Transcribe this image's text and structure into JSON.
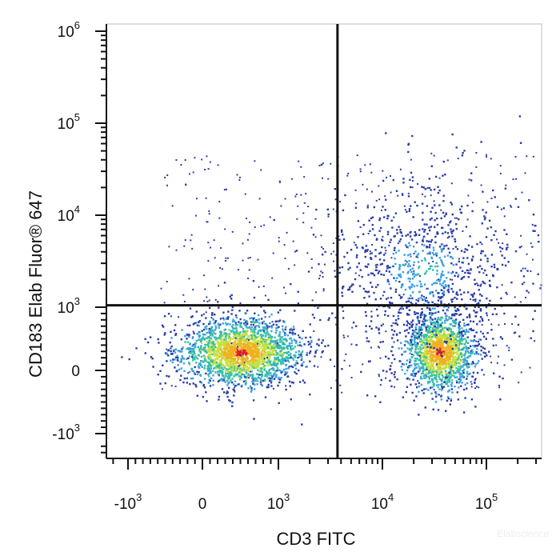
{
  "chart_data": {
    "type": "scatter",
    "title": "",
    "xlabel": "CD3 FITC",
    "ylabel": "CD183  Elab Fluor® 647",
    "x_scale": "biexponential",
    "y_scale": "biexponential",
    "x_ticks": [
      {
        "value": -1000,
        "base": "-10",
        "exp": "3"
      },
      {
        "value": 0,
        "base": "0",
        "exp": ""
      },
      {
        "value": 1000,
        "base": "10",
        "exp": "3"
      },
      {
        "value": 10000,
        "base": "10",
        "exp": "4"
      },
      {
        "value": 100000,
        "base": "10",
        "exp": "5"
      }
    ],
    "y_ticks": [
      {
        "value": 1000000,
        "base": "10",
        "exp": "6"
      },
      {
        "value": 100000,
        "base": "10",
        "exp": "5"
      },
      {
        "value": 10000,
        "base": "10",
        "exp": "4"
      },
      {
        "value": 1000,
        "base": "10",
        "exp": "3"
      },
      {
        "value": 0,
        "base": "0",
        "exp": ""
      },
      {
        "value": -1000,
        "base": "-10",
        "exp": "3"
      }
    ],
    "quadrant_gate": {
      "x": 3700,
      "y": 1050
    },
    "populations": [
      {
        "name_hint": "CD3- CD183-",
        "x_center": 500,
        "y_center": 300,
        "density": "high"
      },
      {
        "name_hint": "CD3+ CD183-",
        "x_center": 35000,
        "y_center": 300,
        "density": "high"
      },
      {
        "name_hint": "CD3+ CD183+",
        "x_center": 25000,
        "y_center": 2500,
        "density": "medium"
      }
    ],
    "colormap": [
      "#2b3da8",
      "#3aa0e0",
      "#35c4a0",
      "#c8e040",
      "#f0b020",
      "#e02020"
    ],
    "grid": false
  },
  "watermark": "Elabscience"
}
